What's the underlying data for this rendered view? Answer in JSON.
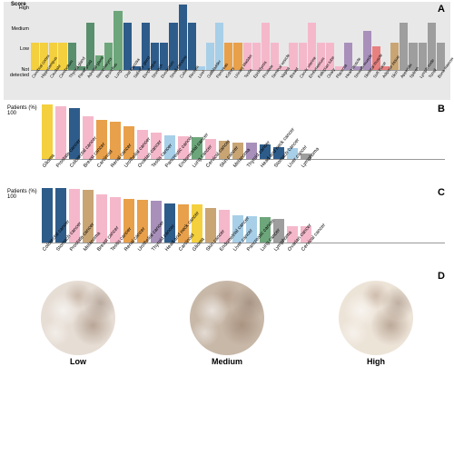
{
  "panelA": {
    "label": "A",
    "title": "Score",
    "ylabels": [
      "High",
      "Medium",
      "Low",
      "Not detected"
    ],
    "items": [
      {
        "l": "Cerebral cortex",
        "v": 42,
        "c": "#f4d03f"
      },
      {
        "l": "Hippocampus",
        "v": 42,
        "c": "#f4d03f"
      },
      {
        "l": "Caudate",
        "v": 42,
        "c": "#f4d03f"
      },
      {
        "l": "Cerebellum",
        "v": 42,
        "c": "#f4d03f"
      },
      {
        "l": "Thyroid gland",
        "v": 42,
        "c": "#5a8f6e"
      },
      {
        "l": "Parathyroid",
        "v": 5,
        "c": "#5a8f6e"
      },
      {
        "l": "Adrenal gland",
        "v": 72,
        "c": "#5a8f6e"
      },
      {
        "l": "Nasopharynx",
        "v": 22,
        "c": "#6da67a"
      },
      {
        "l": "Bronchus",
        "v": 42,
        "c": "#6da67a"
      },
      {
        "l": "Lung",
        "v": 90,
        "c": "#6da67a"
      },
      {
        "l": "Oral mucosa",
        "v": 72,
        "c": "#2e5c8a"
      },
      {
        "l": "Salivary gland",
        "v": 5,
        "c": "#2e5c8a"
      },
      {
        "l": "Esophagus",
        "v": 72,
        "c": "#2e5c8a"
      },
      {
        "l": "Stomach",
        "v": 42,
        "c": "#2e5c8a"
      },
      {
        "l": "Duodenum",
        "v": 42,
        "c": "#2e5c8a"
      },
      {
        "l": "Small intestine",
        "v": 72,
        "c": "#2e5c8a"
      },
      {
        "l": "Colon",
        "v": 100,
        "c": "#2e5c8a"
      },
      {
        "l": "Rectum",
        "v": 72,
        "c": "#2e5c8a"
      },
      {
        "l": "Liver",
        "v": 5,
        "c": "#a8cfe8"
      },
      {
        "l": "Gallbladder",
        "v": 42,
        "c": "#a8cfe8"
      },
      {
        "l": "Pancreas",
        "v": 72,
        "c": "#a8cfe8"
      },
      {
        "l": "Kidney",
        "v": 42,
        "c": "#e8a04a"
      },
      {
        "l": "Urinary bladder",
        "v": 42,
        "c": "#e8a04a"
      },
      {
        "l": "Testis",
        "v": 42,
        "c": "#f5b8cb"
      },
      {
        "l": "Epididymis",
        "v": 42,
        "c": "#f5b8cb"
      },
      {
        "l": "Prostate",
        "v": 72,
        "c": "#f5b8cb"
      },
      {
        "l": "Seminal vesicle",
        "v": 42,
        "c": "#f5b8cb"
      },
      {
        "l": "Vagina",
        "v": 5,
        "c": "#f5b8cb"
      },
      {
        "l": "Breast",
        "v": 42,
        "c": "#f5b8cb"
      },
      {
        "l": "Cervix uterine",
        "v": 42,
        "c": "#f5b8cb"
      },
      {
        "l": "Endometrium",
        "v": 72,
        "c": "#f5b8cb"
      },
      {
        "l": "Fallopian tube",
        "v": 42,
        "c": "#f5b8cb"
      },
      {
        "l": "Ovary",
        "v": 42,
        "c": "#f5b8cb"
      },
      {
        "l": "Placenta",
        "v": 5,
        "c": "#f5b8cb"
      },
      {
        "l": "Heart muscle",
        "v": 42,
        "c": "#a890bb"
      },
      {
        "l": "Smooth muscle",
        "v": 5,
        "c": "#a890bb"
      },
      {
        "l": "Skeletal muscle",
        "v": 60,
        "c": "#a890bb"
      },
      {
        "l": "Soft tissue",
        "v": 36,
        "c": "#e88080"
      },
      {
        "l": "Adipose tissue",
        "v": 5,
        "c": "#e88080"
      },
      {
        "l": "Skin",
        "v": 42,
        "c": "#c9a574"
      },
      {
        "l": "Appendix",
        "v": 72,
        "c": "#9e9e9e"
      },
      {
        "l": "Spleen",
        "v": 42,
        "c": "#9e9e9e"
      },
      {
        "l": "Lymph node",
        "v": 42,
        "c": "#9e9e9e"
      },
      {
        "l": "Tonsil",
        "v": 72,
        "c": "#9e9e9e"
      },
      {
        "l": "Bone marrow",
        "v": 42,
        "c": "#9e9e9e"
      }
    ]
  },
  "panelB": {
    "label": "B",
    "ylabel": "Patients (%)",
    "ytick": "100",
    "items": [
      {
        "l": "Glioma",
        "v": 100,
        "c": "#f4d03f"
      },
      {
        "l": "Prostate cancer",
        "v": 96,
        "c": "#f5b8cb"
      },
      {
        "l": "Colorectal cancer",
        "v": 94,
        "c": "#2e5c8a"
      },
      {
        "l": "Breast cancer",
        "v": 78,
        "c": "#f5b8cb"
      },
      {
        "l": "Carcinoid",
        "v": 72,
        "c": "#e8a04a"
      },
      {
        "l": "Renal cancer",
        "v": 68,
        "c": "#e8a04a"
      },
      {
        "l": "Urothelial cancer",
        "v": 60,
        "c": "#e8a04a"
      },
      {
        "l": "Ovarian cancer",
        "v": 54,
        "c": "#f5b8cb"
      },
      {
        "l": "Testis cancer",
        "v": 48,
        "c": "#f5b8cb"
      },
      {
        "l": "Pancreatic cancer",
        "v": 44,
        "c": "#a8cfe8"
      },
      {
        "l": "Endometrial cancer",
        "v": 42,
        "c": "#f5b8cb"
      },
      {
        "l": "Lung cancer",
        "v": 40,
        "c": "#6da67a"
      },
      {
        "l": "Cervical cancer",
        "v": 36,
        "c": "#f5b8cb"
      },
      {
        "l": "Skin cancer",
        "v": 34,
        "c": "#c9a574"
      },
      {
        "l": "Melanoma",
        "v": 30,
        "c": "#c9a574"
      },
      {
        "l": "Thyroid cancer",
        "v": 30,
        "c": "#a890bb"
      },
      {
        "l": "Head and neck cancer",
        "v": 26,
        "c": "#2e5c8a"
      },
      {
        "l": "Stomach cancer",
        "v": 22,
        "c": "#2e5c8a"
      },
      {
        "l": "Liver cancer",
        "v": 20,
        "c": "#a8cfe8"
      },
      {
        "l": "Lymphoma",
        "v": 10,
        "c": "#9e9e9e"
      }
    ]
  },
  "panelC": {
    "label": "C",
    "ylabel": "Patients (%)",
    "ytick": "100",
    "items": [
      {
        "l": "Colorectal cancer",
        "v": 100,
        "c": "#2e5c8a"
      },
      {
        "l": "Stomach cancer",
        "v": 100,
        "c": "#2e5c8a"
      },
      {
        "l": "Prostate cancer",
        "v": 98,
        "c": "#f5b8cb"
      },
      {
        "l": "Melanoma",
        "v": 96,
        "c": "#c9a574"
      },
      {
        "l": "Breast cancer",
        "v": 88,
        "c": "#f5b8cb"
      },
      {
        "l": "Testis cancer",
        "v": 84,
        "c": "#f5b8cb"
      },
      {
        "l": "Renal cancer",
        "v": 80,
        "c": "#e8a04a"
      },
      {
        "l": "Urothelial cancer",
        "v": 78,
        "c": "#e8a04a"
      },
      {
        "l": "Thyroid cancer",
        "v": 76,
        "c": "#a890bb"
      },
      {
        "l": "Head and neck cancer",
        "v": 72,
        "c": "#2e5c8a"
      },
      {
        "l": "Carcinoid",
        "v": 70,
        "c": "#e8a04a"
      },
      {
        "l": "Glioma",
        "v": 70,
        "c": "#f4d03f"
      },
      {
        "l": "Skin cancer",
        "v": 64,
        "c": "#c9a574"
      },
      {
        "l": "Endometrial cancer",
        "v": 60,
        "c": "#f5b8cb"
      },
      {
        "l": "Liver cancer",
        "v": 50,
        "c": "#a8cfe8"
      },
      {
        "l": "Pancreatic cancer",
        "v": 48,
        "c": "#a8cfe8"
      },
      {
        "l": "Lung cancer",
        "v": 46,
        "c": "#6da67a"
      },
      {
        "l": "Lymphoma",
        "v": 44,
        "c": "#9e9e9e"
      },
      {
        "l": "Ovarian cancer",
        "v": 30,
        "c": "#f5b8cb"
      },
      {
        "l": "Cervical cancer",
        "v": 30,
        "c": "#f5b8cb"
      }
    ]
  },
  "panelD": {
    "label": "D",
    "captions": [
      "Low",
      "Medium",
      "High"
    ],
    "bg": [
      "#e6ddd4",
      "#c8b8a8",
      "#ede4d8"
    ]
  }
}
